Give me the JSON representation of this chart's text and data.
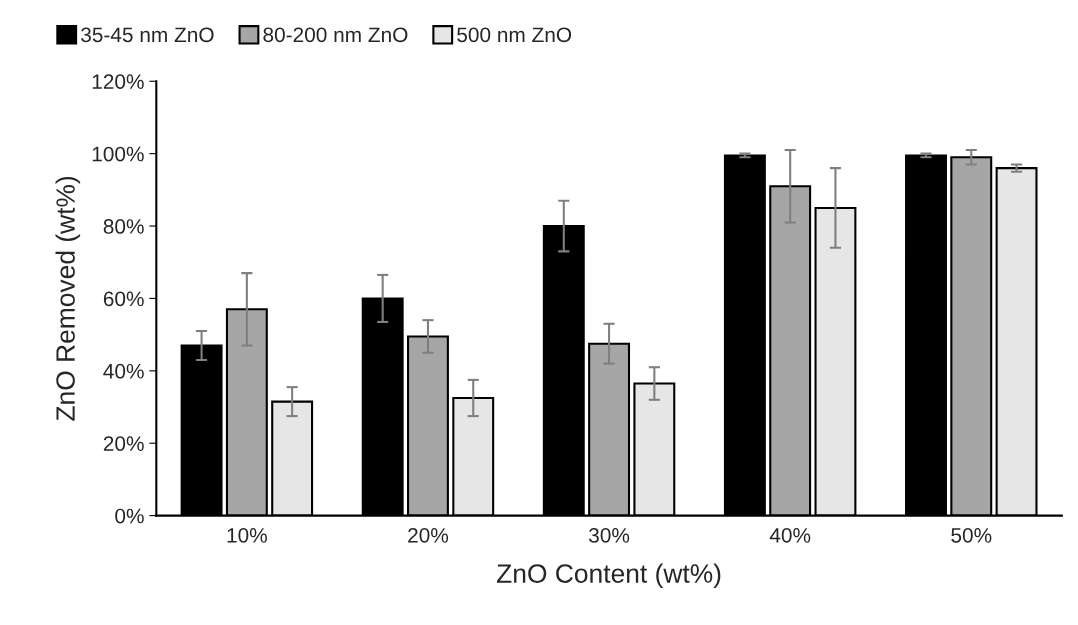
{
  "chart_data": {
    "type": "bar",
    "xlabel": "ZnO Content (wt%)",
    "ylabel": "ZnO Removed (wt%)",
    "categories": [
      "10%",
      "20%",
      "30%",
      "40%",
      "50%"
    ],
    "series": [
      {
        "name": "35-45 nm ZnO",
        "color": "#000000",
        "values": [
          47,
          60,
          80,
          99.5,
          99.5
        ],
        "errors": [
          4,
          6.5,
          7,
          0.5,
          0.5
        ]
      },
      {
        "name": "80-200 nm ZnO",
        "color": "#a6a6a6",
        "values": [
          57,
          49.5,
          47.5,
          91,
          99
        ],
        "errors": [
          10,
          4.5,
          5.5,
          10,
          2
        ]
      },
      {
        "name": "500 nm ZnO",
        "color": "#e7e6e6",
        "values": [
          31.5,
          32.5,
          36.5,
          85,
          96
        ],
        "errors": [
          4,
          5,
          4.5,
          11,
          1
        ]
      }
    ],
    "ylim": [
      0,
      120
    ],
    "yticks": [
      {
        "value": 0,
        "label": "0%"
      },
      {
        "value": 20,
        "label": "20%"
      },
      {
        "value": 40,
        "label": "40%"
      },
      {
        "value": 60,
        "label": "60%"
      },
      {
        "value": 80,
        "label": "80%"
      },
      {
        "value": 100,
        "label": "100%"
      },
      {
        "value": 120,
        "label": "120%"
      }
    ],
    "grid": false,
    "legend": "top left"
  }
}
